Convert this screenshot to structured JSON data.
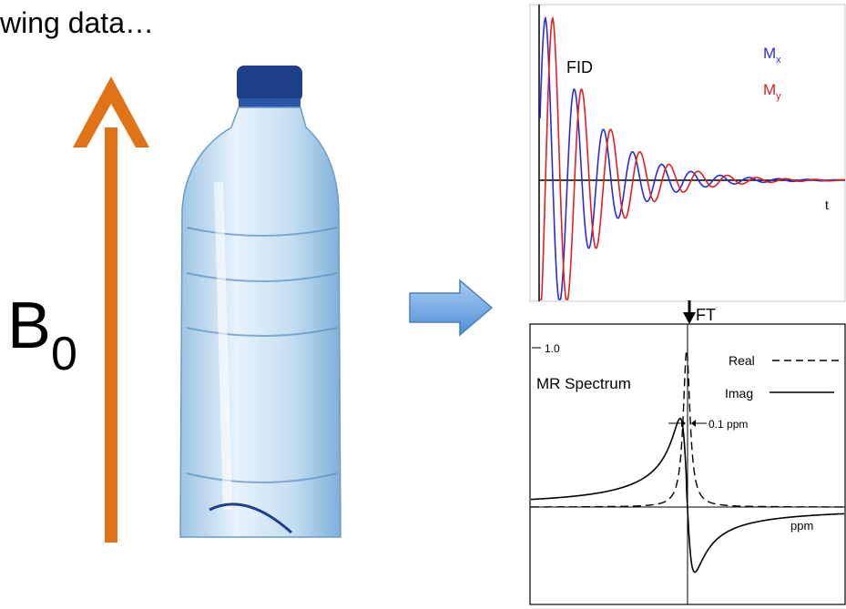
{
  "header": {
    "text": "wing data…"
  },
  "field": {
    "main": "B",
    "sub": "0"
  },
  "fid": {
    "title": "FID",
    "legend": [
      {
        "main": "M",
        "sub": "x"
      },
      {
        "main": "M",
        "sub": "y"
      }
    ],
    "axis": "t"
  },
  "transform": "FT",
  "spectrum": {
    "scale": "1.0",
    "title": "MR Spectrum",
    "legend": [
      "Real",
      "Imag"
    ],
    "linewidth": "0.1 ppm",
    "axis": "ppm"
  }
}
